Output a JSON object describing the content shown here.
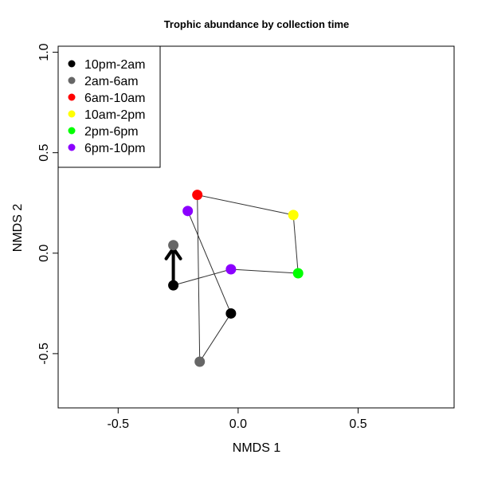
{
  "chart_data": {
    "type": "scatter",
    "title": "Trophic abundance by collection time",
    "xlabel": "NMDS 1",
    "ylabel": "NMDS 2",
    "xlim": [
      -0.75,
      0.9
    ],
    "ylim": [
      -0.77,
      1.03
    ],
    "x_ticks": [
      -0.5,
      0.0,
      0.5
    ],
    "x_tick_labels": [
      "-0.5",
      "0.0",
      "0.5"
    ],
    "y_ticks": [
      -0.5,
      0.0,
      0.5,
      1.0
    ],
    "y_tick_labels": [
      "-0.5",
      "0.0",
      "0.5",
      "1.0"
    ],
    "grid": false,
    "legend_position": "top-left",
    "legend": [
      {
        "label": "10pm-2am",
        "color": "#000000"
      },
      {
        "label": "2am-6am",
        "color": "#666666"
      },
      {
        "label": "6am-10am",
        "color": "#ff0000"
      },
      {
        "label": "10am-2pm",
        "color": "#ffff00"
      },
      {
        "label": "2pm-6pm",
        "color": "#00ff00"
      },
      {
        "label": "6pm-10pm",
        "color": "#8b00ff"
      }
    ],
    "points": [
      {
        "x": -0.27,
        "y": -0.16,
        "color": "#000000"
      },
      {
        "x": -0.27,
        "y": 0.04,
        "color": "#666666"
      },
      {
        "x": -0.17,
        "y": 0.29,
        "color": "#ff0000"
      },
      {
        "x": -0.21,
        "y": 0.21,
        "color": "#8b00ff"
      },
      {
        "x": -0.03,
        "y": -0.3,
        "color": "#000000"
      },
      {
        "x": -0.16,
        "y": -0.54,
        "color": "#666666"
      },
      {
        "x": -0.03,
        "y": -0.08,
        "color": "#8b00ff"
      },
      {
        "x": 0.25,
        "y": -0.1,
        "color": "#00ff00"
      },
      {
        "x": 0.23,
        "y": 0.19,
        "color": "#ffff00"
      }
    ],
    "path_order": [
      0,
      6,
      7,
      8,
      2,
      5,
      4,
      3
    ],
    "arrow": {
      "from": [
        -0.27,
        -0.16
      ],
      "to": [
        -0.27,
        0.04
      ]
    }
  }
}
